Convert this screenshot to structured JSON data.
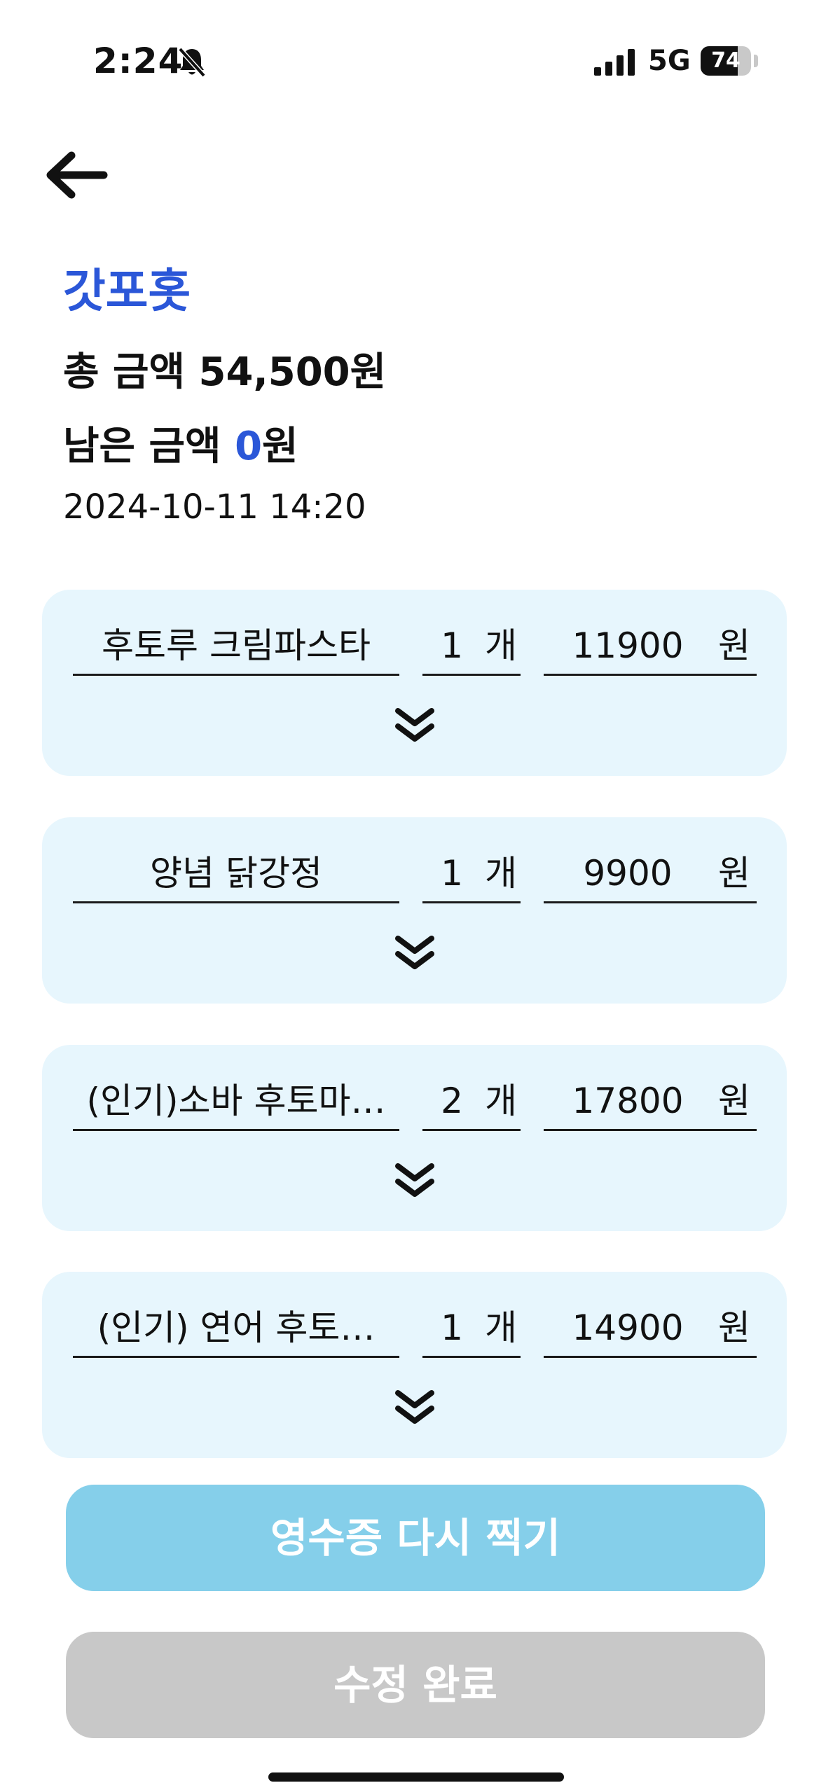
{
  "status_bar": {
    "time": "2:24",
    "network": "5G",
    "battery": "74",
    "battery_level": 0.74,
    "icons": [
      "bell-slash-icon",
      "signal-icon",
      "battery-icon"
    ]
  },
  "header": {
    "back_icon": "arrow-left-icon"
  },
  "summary": {
    "store_name": "갓포홋",
    "total_label": "총 금액 54,500원",
    "remaining_prefix": "남은 금액 ",
    "remaining_value": "0",
    "remaining_suffix": "원",
    "datetime": "2024-10-11 14:20"
  },
  "items": [
    {
      "name": "후토루 크림파스타",
      "qty": "1",
      "qty_unit": "개",
      "price": "11900",
      "price_unit": "원"
    },
    {
      "name": "양념 닭강정",
      "qty": "1",
      "qty_unit": "개",
      "price": "9900",
      "price_unit": "원"
    },
    {
      "name": "(인기)소바 후토마…",
      "qty": "2",
      "qty_unit": "개",
      "price": "17800",
      "price_unit": "원"
    },
    {
      "name": "(인기) 연어 후토…",
      "qty": "1",
      "qty_unit": "개",
      "price": "14900",
      "price_unit": "원"
    }
  ],
  "buttons": {
    "retake": "영수증 다시 찍기",
    "done": "수정 완료"
  },
  "colors": {
    "accent_blue": "#2b57d8",
    "card_bg": "#e7f6fd",
    "retake_bg": "#85cfea",
    "done_bg": "#c8c8c8"
  }
}
